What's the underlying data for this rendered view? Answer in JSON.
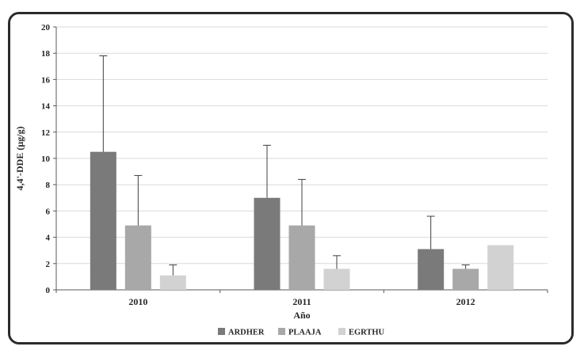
{
  "figure": {
    "frame_color": "#2b2b2b",
    "background": "#ffffff",
    "gridline_color": "#d9d9d9",
    "axis_color": "#595959",
    "error_bar_color": "#404040",
    "text_color": "#262626"
  },
  "chart_data": {
    "type": "bar",
    "title": "",
    "categories": [
      "2010",
      "2011",
      "2012"
    ],
    "series": [
      {
        "name": "ARDHER",
        "color": "#7a7a7a",
        "values": [
          10.5,
          7.0,
          3.1
        ],
        "errors": [
          7.3,
          4.0,
          2.5
        ]
      },
      {
        "name": "PLAAJA",
        "color": "#a8a8a8",
        "values": [
          4.9,
          4.9,
          1.6
        ],
        "errors": [
          3.8,
          3.5,
          0.3
        ]
      },
      {
        "name": "EGRTHU",
        "color": "#d2d2d2",
        "values": [
          1.1,
          1.6,
          3.4
        ],
        "errors": [
          0.8,
          1.0,
          0
        ]
      }
    ],
    "xlabel": "Año",
    "ylabel": "4,4'-DDE (µg/g)",
    "ylim": [
      0,
      20
    ],
    "ytick_step": 2,
    "grid": true,
    "legend_position": "bottom"
  }
}
